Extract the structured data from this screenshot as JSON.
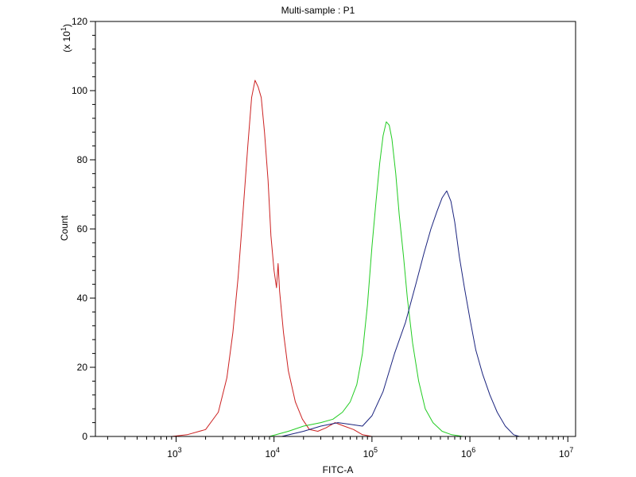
{
  "chart_data": {
    "type": "line",
    "title": "Multi-sample : P1",
    "xlabel": "FITC-A",
    "ylabel": "Count",
    "yscale_note": "(x 10",
    "yscale_exp": "1",
    "yscale_close": ")",
    "x_scale": "log",
    "xlim": [
      150,
      12000000
    ],
    "ylim": [
      0,
      1200
    ],
    "grid": false,
    "legend": "none",
    "y_ticks": [
      {
        "value": 0,
        "label": "0"
      },
      {
        "value": 200,
        "label": "20"
      },
      {
        "value": 400,
        "label": "40"
      },
      {
        "value": 600,
        "label": "60"
      },
      {
        "value": 800,
        "label": "80"
      },
      {
        "value": 1000,
        "label": "100"
      },
      {
        "value": 1200,
        "label": "120"
      }
    ],
    "x_ticks": [
      {
        "value": 1000,
        "base": "10",
        "exp": "3"
      },
      {
        "value": 10000,
        "base": "10",
        "exp": "4"
      },
      {
        "value": 100000,
        "base": "10",
        "exp": "5"
      },
      {
        "value": 1000000,
        "base": "10",
        "exp": "6"
      },
      {
        "value": 10000000,
        "base": "10",
        "exp": "7"
      }
    ],
    "series": [
      {
        "color": "#cc2222",
        "x": [
          900,
          1300,
          2000,
          2700,
          3300,
          3800,
          4300,
          4800,
          5400,
          5900,
          6400,
          6900,
          7400,
          8000,
          8700,
          9300,
          10000,
          10600,
          11000,
          11400,
          12500,
          14000,
          16500,
          19500,
          23000,
          28000,
          34000,
          42000,
          52000,
          65000,
          80000,
          100000,
          130000
        ],
        "y": [
          0,
          5,
          20,
          70,
          170,
          300,
          460,
          640,
          840,
          980,
          1030,
          1010,
          980,
          880,
          740,
          580,
          480,
          430,
          500,
          420,
          300,
          190,
          100,
          50,
          20,
          15,
          25,
          40,
          30,
          20,
          5,
          0,
          0
        ]
      },
      {
        "color": "#22cc22",
        "x": [
          9000,
          14000,
          20000,
          30000,
          40000,
          50000,
          60000,
          70000,
          80000,
          90000,
          100000,
          110000,
          120000,
          130000,
          140000,
          150000,
          160000,
          175000,
          190000,
          210000,
          230000,
          260000,
          300000,
          350000,
          420000,
          520000,
          650000,
          850000
        ],
        "y": [
          0,
          15,
          30,
          40,
          50,
          70,
          100,
          150,
          240,
          380,
          550,
          680,
          790,
          870,
          910,
          900,
          860,
          760,
          640,
          520,
          400,
          270,
          160,
          80,
          40,
          15,
          5,
          0
        ]
      },
      {
        "color": "#1a237e",
        "x": [
          12000,
          20000,
          30000,
          45000,
          60000,
          80000,
          100000,
          130000,
          170000,
          220000,
          280000,
          340000,
          400000,
          460000,
          520000,
          580000,
          640000,
          700000,
          780000,
          880000,
          1000000,
          1150000,
          1350000,
          1600000,
          1900000,
          2300000,
          2800000,
          3200000
        ],
        "y": [
          0,
          15,
          30,
          40,
          35,
          30,
          60,
          130,
          240,
          330,
          440,
          530,
          600,
          650,
          690,
          710,
          680,
          620,
          520,
          430,
          340,
          250,
          180,
          120,
          70,
          30,
          5,
          0
        ]
      }
    ]
  }
}
